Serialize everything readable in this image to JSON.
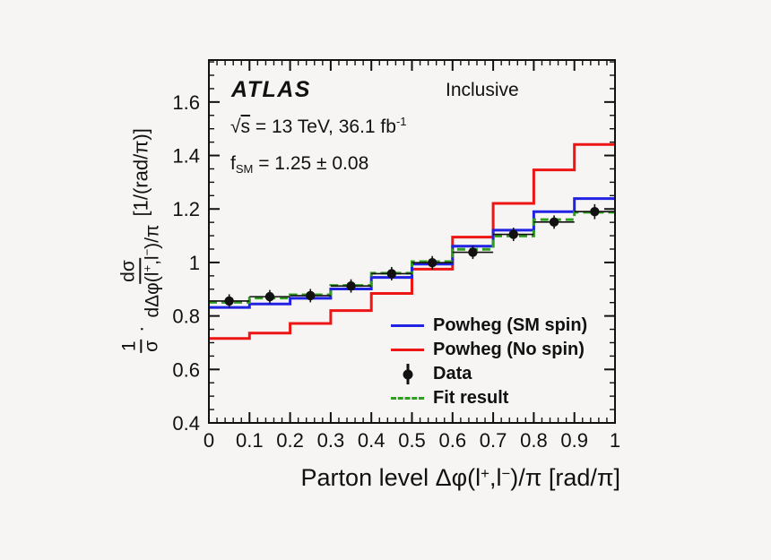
{
  "header": {
    "experiment": "ATLAS",
    "region": "Inclusive",
    "sqrt_sign": "√",
    "sqrt_arg": "s",
    "energy_text": " = 13 TeV, 36.1 fb",
    "lumi_exp": "-1",
    "f_letter": "f",
    "f_sub": "SM",
    "f_value": " = 1.25 ± 0.08"
  },
  "ylabel": {
    "one": "1",
    "sigma": "σ",
    "dot": "·",
    "dsigma": "dσ",
    "den_a": "dΔφ(l",
    "plus": "+",
    "den_b": ",l",
    "minus": "−",
    "den_c": ")/π",
    "units": "[1/(rad/π)]"
  },
  "xlabel": {
    "a": "Parton level Δφ(l",
    "plus": "+",
    "b": ",l",
    "minus": "−",
    "c": ")/π [rad/π]"
  },
  "legend": {
    "entries": [
      {
        "label": "Powheg (SM spin)",
        "swatch": "solid-line",
        "color": "#2222e2"
      },
      {
        "label": "Powheg (No spin)",
        "swatch": "solid-line",
        "color": "#ee1515"
      },
      {
        "label": "Data",
        "swatch": "marker",
        "color": "#111111"
      },
      {
        "label": "Fit result",
        "swatch": "dashed-line",
        "color": "#2f9e1f"
      }
    ]
  },
  "chart_data": {
    "type": "line",
    "subtype": "step-histograms-with-data-points",
    "title": "",
    "xlabel": "Parton level Δφ(l+,l−)/π [rad/π]",
    "ylabel": "1/σ · dσ/d(Δφ(l+,l−)/π) [1/(rad/π)]",
    "annotations": [
      "ATLAS",
      "Inclusive",
      "√s = 13 TeV, 36.1 fb−1",
      "f_SM = 1.25 ± 0.08"
    ],
    "xlim": [
      0,
      1
    ],
    "ylim": [
      0.4,
      1.757
    ],
    "grid": false,
    "legend_position": "inside-lower-right",
    "bin_edges": [
      0,
      0.1,
      0.2,
      0.3,
      0.4,
      0.5,
      0.6,
      0.7,
      0.8,
      0.9,
      1.0
    ],
    "x_ticks": [
      0,
      0.1,
      0.2,
      0.3,
      0.4,
      0.5,
      0.6,
      0.7,
      0.8,
      0.9,
      1
    ],
    "x_tick_labels": [
      "0",
      "0.1",
      "0.2",
      "0.3",
      "0.4",
      "0.5",
      "0.6",
      "0.7",
      "0.8",
      "0.9",
      "1"
    ],
    "y_ticks": [
      0.4,
      0.6,
      0.8,
      1.0,
      1.2,
      1.4,
      1.6
    ],
    "y_tick_labels": [
      "0.4",
      "0.6",
      "0.8",
      "1",
      "1.2",
      "1.4",
      "1.6"
    ],
    "x_minor_step": 0.02,
    "y_minor_step": 0.05,
    "series": [
      {
        "name": "Powheg (No spin)",
        "style": "step-solid",
        "color": "#ee1515",
        "values": [
          0.716,
          0.736,
          0.772,
          0.82,
          0.884,
          0.975,
          1.095,
          1.221,
          1.346,
          1.441
        ]
      },
      {
        "name": "Powheg (SM spin)",
        "style": "step-solid",
        "color": "#2222e2",
        "values": [
          0.832,
          0.845,
          0.866,
          0.901,
          0.944,
          0.994,
          1.061,
          1.121,
          1.19,
          1.239
        ]
      },
      {
        "name": "Fit result",
        "style": "step-dashed",
        "color": "#2f9e1f",
        "values": [
          0.851,
          0.867,
          0.879,
          0.914,
          0.96,
          1.003,
          1.049,
          1.099,
          1.16,
          1.188
        ]
      },
      {
        "name": "Data",
        "style": "points",
        "color": "#111111",
        "values": [
          0.856,
          0.872,
          0.876,
          0.912,
          0.958,
          0.999,
          1.038,
          1.105,
          1.151,
          1.19
        ],
        "yerr": [
          0.025,
          0.025,
          0.025,
          0.025,
          0.025,
          0.025,
          0.025,
          0.025,
          0.025,
          0.028
        ]
      }
    ]
  }
}
